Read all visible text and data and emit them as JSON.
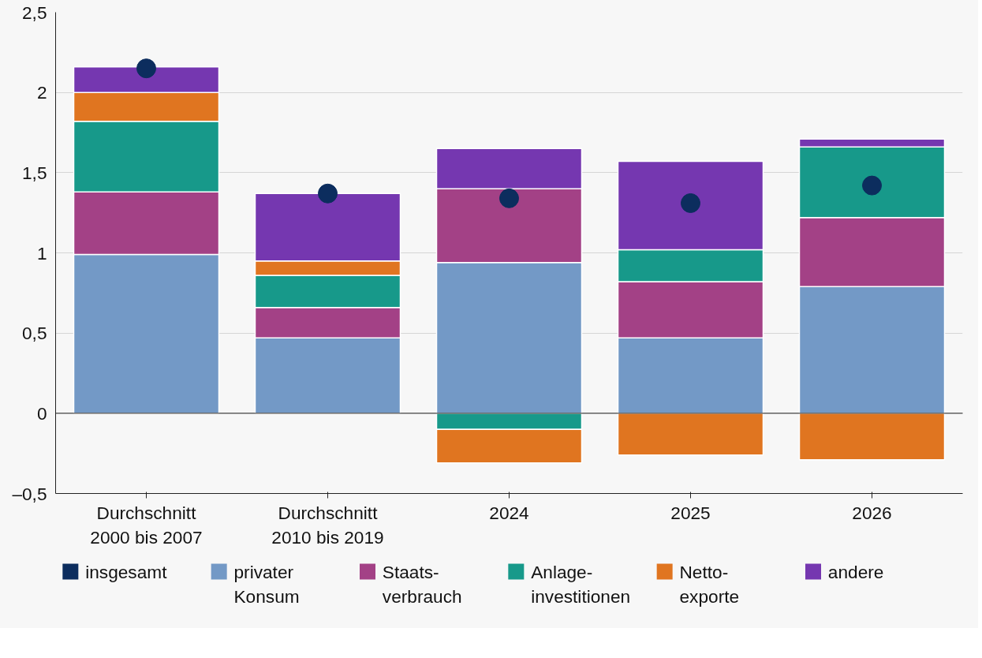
{
  "chart_data": {
    "type": "bar",
    "stacked": true,
    "categories": [
      "Durchschnitt\n2000 bis 2007",
      "Durchschnitt\n2010 bis 2019",
      "2024",
      "2025",
      "2026"
    ],
    "series": [
      {
        "name": "insgesamt",
        "type": "scatter",
        "marker": "circle",
        "color": "#0c2d5e",
        "values": [
          2.15,
          1.37,
          1.34,
          1.31,
          1.42
        ]
      },
      {
        "name": "privater\nKonsum",
        "color": "#7399c6",
        "values": [
          0.99,
          0.47,
          0.94,
          0.47,
          0.79
        ]
      },
      {
        "name": "Staats-\nverbrauch",
        "color": "#a34186",
        "values": [
          0.39,
          0.19,
          0.46,
          0.35,
          0.43
        ]
      },
      {
        "name": "Anlage-\ninvestitionen",
        "color": "#17998a",
        "values": [
          0.44,
          0.2,
          -0.1,
          0.2,
          0.44
        ]
      },
      {
        "name": "Netto-\nexporte",
        "color": "#e07520",
        "values": [
          0.18,
          0.09,
          -0.21,
          -0.26,
          -0.29
        ]
      },
      {
        "name": "andere",
        "color": "#7537b0",
        "values": [
          0.16,
          0.42,
          0.25,
          0.55,
          0.05
        ]
      }
    ],
    "ylim": [
      -0.5,
      2.5
    ],
    "yticks": [
      {
        "value": -0.5,
        "label": "–0,5"
      },
      0,
      {
        "value": 0.5,
        "label": "0,5"
      },
      1,
      {
        "value": 1.5,
        "label": "1,5"
      },
      2,
      {
        "value": 2.5,
        "label": "2,5"
      }
    ],
    "grid": "y",
    "legend": "bottom"
  }
}
